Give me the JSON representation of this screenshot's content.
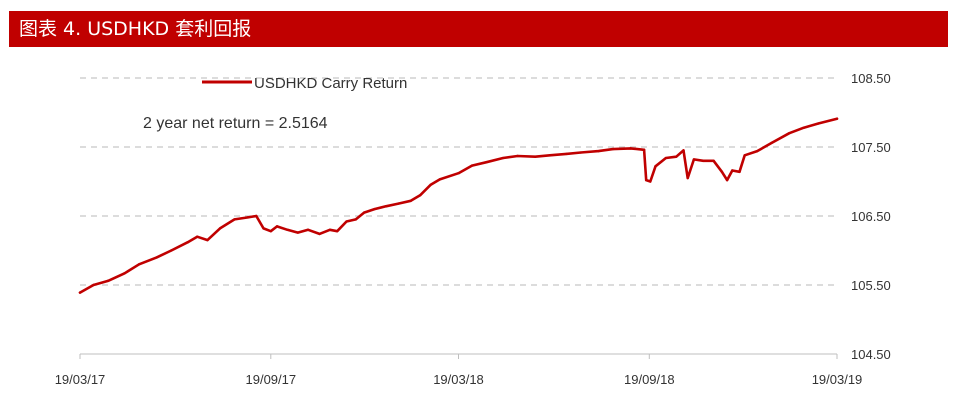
{
  "header": {
    "title": "图表 4. USDHKD 套利回报"
  },
  "chart_data": {
    "type": "line",
    "title": "图表 4. USDHKD 套利回报",
    "xlabel": "",
    "ylabel": "",
    "x_ticks": [
      "19/03/17",
      "19/09/17",
      "19/03/18",
      "19/09/18",
      "19/03/19"
    ],
    "y_ticks": [
      "108.50",
      "107.50",
      "106.50",
      "105.50",
      "104.50"
    ],
    "ylim": [
      104.5,
      108.5
    ],
    "grid": "horizontal dashed",
    "legend_position": "top",
    "annotation": "2 year net return = 2.5164",
    "series": [
      {
        "name": "USDHKD Carry Return",
        "color": "#c00000",
        "points": [
          [
            "19/03/17",
            105.39
          ],
          [
            "2017-04-01",
            105.5
          ],
          [
            "2017-04-15",
            105.56
          ],
          [
            "2017-05-01",
            105.67
          ],
          [
            "2017-05-15",
            105.8
          ],
          [
            "2017-06-01",
            105.9
          ],
          [
            "2017-06-15",
            106.0
          ],
          [
            "2017-07-01",
            106.12
          ],
          [
            "2017-07-10",
            106.2
          ],
          [
            "2017-07-20",
            106.15
          ],
          [
            "2017-08-01",
            106.32
          ],
          [
            "2017-08-15",
            106.45
          ],
          [
            "2017-08-28",
            106.48
          ],
          [
            "2017-09-05",
            106.5
          ],
          [
            "2017-09-12",
            106.32
          ],
          [
            "19/09/17",
            106.28
          ],
          [
            "2017-09-25",
            106.35
          ],
          [
            "2017-10-05",
            106.3
          ],
          [
            "2017-10-15",
            106.26
          ],
          [
            "2017-10-25",
            106.3
          ],
          [
            "2017-11-05",
            106.24
          ],
          [
            "2017-11-15",
            106.3
          ],
          [
            "2017-11-22",
            106.28
          ],
          [
            "2017-12-01",
            106.42
          ],
          [
            "2017-12-10",
            106.45
          ],
          [
            "2017-12-18",
            106.55
          ],
          [
            "2017-12-28",
            106.6
          ],
          [
            "2018-01-08",
            106.64
          ],
          [
            "2018-01-20",
            106.68
          ],
          [
            "2018-02-01",
            106.72
          ],
          [
            "2018-02-10",
            106.8
          ],
          [
            "2018-02-20",
            106.95
          ],
          [
            "2018-03-01",
            107.03
          ],
          [
            "19/03/18",
            107.12
          ],
          [
            "2018-04-01",
            107.23
          ],
          [
            "2018-04-15",
            107.28
          ],
          [
            "2018-05-01",
            107.34
          ],
          [
            "2018-05-15",
            107.37
          ],
          [
            "2018-06-01",
            107.36
          ],
          [
            "2018-06-15",
            107.38
          ],
          [
            "2018-07-01",
            107.4
          ],
          [
            "2018-07-15",
            107.42
          ],
          [
            "2018-08-01",
            107.44
          ],
          [
            "2018-08-15",
            107.47
          ],
          [
            "2018-09-01",
            107.48
          ],
          [
            "2018-09-14",
            107.46
          ],
          [
            "2018-09-16",
            107.02
          ],
          [
            "2018-09-20",
            107.0
          ],
          [
            "2018-09-25",
            107.22
          ],
          [
            "2018-10-05",
            107.34
          ],
          [
            "2018-10-15",
            107.36
          ],
          [
            "2018-10-22",
            107.45
          ],
          [
            "2018-10-26",
            107.05
          ],
          [
            "2018-11-01",
            107.32
          ],
          [
            "2018-11-10",
            107.3
          ],
          [
            "2018-11-20",
            107.3
          ],
          [
            "2018-11-28",
            107.14
          ],
          [
            "2018-12-03",
            107.02
          ],
          [
            "2018-12-08",
            107.16
          ],
          [
            "2018-12-15",
            107.14
          ],
          [
            "2018-12-20",
            107.38
          ],
          [
            "2019-01-01",
            107.44
          ],
          [
            "2019-01-15",
            107.56
          ],
          [
            "2019-02-01",
            107.7
          ],
          [
            "2019-02-15",
            107.78
          ],
          [
            "2019-03-01",
            107.84
          ],
          [
            "19/03/19",
            107.91
          ]
        ]
      }
    ]
  }
}
